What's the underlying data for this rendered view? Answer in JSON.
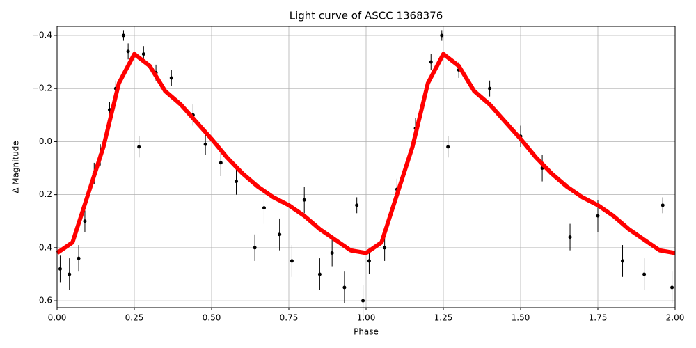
{
  "chart_data": {
    "type": "scatter",
    "title": "Light curve of ASCC 1368376",
    "x_label": "Phase",
    "y_label": "Δ Magnitude",
    "xlim": [
      0,
      2
    ],
    "xticks": [
      {
        "value": 0,
        "label": "0.00"
      },
      {
        "value": 0.25,
        "label": "0.25"
      },
      {
        "value": 0.5,
        "label": "0.50"
      },
      {
        "value": 0.75,
        "label": "0.75"
      },
      {
        "value": 1,
        "label": "1.00"
      },
      {
        "value": 1.25,
        "label": "1.25"
      },
      {
        "value": 1.5,
        "label": "1.50"
      },
      {
        "value": 1.75,
        "label": "1.75"
      },
      {
        "value": 2,
        "label": "2.00"
      }
    ],
    "ylim": [
      0.626,
      -0.434
    ],
    "y_inverted": true,
    "yticks": [
      {
        "value": -0.4,
        "label": "−0.4"
      },
      {
        "value": -0.2,
        "label": "−0.2"
      },
      {
        "value": 0,
        "label": "0.0"
      },
      0.2,
      0.4,
      0.6
    ],
    "grid": true,
    "points": {
      "color": "#000000",
      "x": [
        0.01,
        0.04,
        0.07,
        0.09,
        0.12,
        0.14,
        0.17,
        0.19,
        0.215,
        0.23,
        0.265,
        0.28,
        0.32,
        0.37,
        0.44,
        0.48,
        0.53,
        0.58,
        0.64,
        0.67,
        0.72,
        0.76,
        0.8,
        0.85,
        0.89,
        0.93,
        0.97,
        0.99,
        1.01,
        1.06,
        1.1,
        1.16,
        1.21,
        1.245,
        1.265,
        1.3,
        1.4,
        1.5,
        1.57,
        1.66,
        1.75,
        1.83,
        1.9,
        1.96,
        1.99
      ],
      "values": [
        0.48,
        0.5,
        0.44,
        0.3,
        0.12,
        0.05,
        -0.12,
        -0.2,
        -0.4,
        -0.34,
        0.02,
        -0.33,
        -0.26,
        -0.24,
        -0.1,
        0.01,
        0.08,
        0.15,
        0.4,
        0.25,
        0.35,
        0.45,
        0.22,
        0.5,
        0.42,
        0.55,
        0.24,
        0.6,
        0.45,
        0.4,
        0.18,
        -0.05,
        -0.3,
        -0.4,
        0.02,
        -0.27,
        -0.2,
        -0.02,
        0.1,
        0.36,
        0.28,
        0.45,
        0.5,
        0.24,
        0.55
      ],
      "errors": [
        0.05,
        0.06,
        0.05,
        0.04,
        0.04,
        0.04,
        0.03,
        0.03,
        0.02,
        0.03,
        0.04,
        0.03,
        0.03,
        0.03,
        0.04,
        0.04,
        0.05,
        0.05,
        0.05,
        0.06,
        0.06,
        0.06,
        0.05,
        0.06,
        0.05,
        0.06,
        0.03,
        0.06,
        0.05,
        0.05,
        0.04,
        0.04,
        0.03,
        0.02,
        0.04,
        0.03,
        0.03,
        0.04,
        0.05,
        0.05,
        0.06,
        0.06,
        0.06,
        0.03,
        0.06
      ]
    },
    "model": {
      "color": "#ff0000",
      "x": [
        0,
        0.05,
        0.1,
        0.15,
        0.2,
        0.25,
        0.3,
        0.35,
        0.4,
        0.45,
        0.5,
        0.55,
        0.6,
        0.65,
        0.7,
        0.75,
        0.8,
        0.85,
        0.9,
        0.95,
        1,
        1.05,
        1.1,
        1.15,
        1.2,
        1.25,
        1.3,
        1.35,
        1.4,
        1.45,
        1.5,
        1.55,
        1.6,
        1.65,
        1.7,
        1.75,
        1.8,
        1.85,
        1.9,
        1.95,
        2
      ],
      "values": [
        0.42,
        0.38,
        0.2,
        0.02,
        -0.22,
        -0.33,
        -0.285,
        -0.19,
        -0.14,
        -0.075,
        -0.01,
        0.06,
        0.12,
        0.17,
        0.21,
        0.24,
        0.28,
        0.33,
        0.37,
        0.41,
        0.42,
        0.38,
        0.2,
        0.02,
        -0.22,
        -0.33,
        -0.285,
        -0.19,
        -0.14,
        -0.075,
        -0.01,
        0.06,
        0.12,
        0.17,
        0.21,
        0.24,
        0.28,
        0.33,
        0.37,
        0.41,
        0.42
      ]
    }
  }
}
